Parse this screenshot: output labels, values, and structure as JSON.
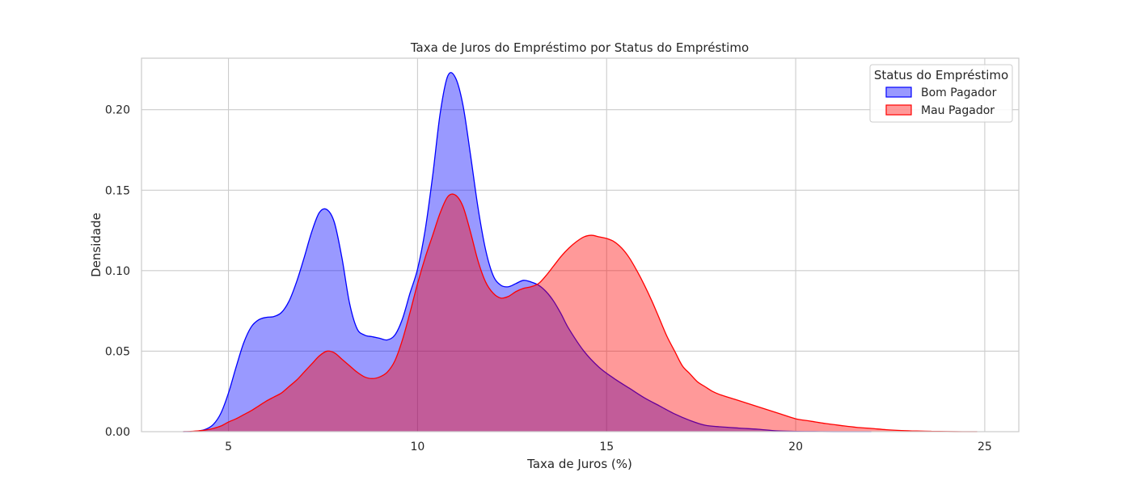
{
  "chart_data": {
    "type": "area",
    "title": "Taxa de Juros do Empréstimo por Status do Empréstimo",
    "xlabel": "Taxa de Juros (%)",
    "ylabel": "Densidade",
    "xlim": [
      2.7,
      25.9
    ],
    "ylim": [
      0.0,
      0.232
    ],
    "x_ticks": [
      5,
      10,
      15,
      20,
      25
    ],
    "x_tick_labels": [
      "5",
      "10",
      "15",
      "20",
      "25"
    ],
    "y_ticks": [
      0.0,
      0.05,
      0.1,
      0.15,
      0.2
    ],
    "y_tick_labels": [
      "0.00",
      "0.05",
      "0.10",
      "0.15",
      "0.20"
    ],
    "grid": true,
    "legend": {
      "title": "Status do Empréstimo",
      "placement": "top-right"
    },
    "series": [
      {
        "name": "Bom Pagador",
        "color": "#0000ff",
        "fill": "#0000ff",
        "fill_opacity": 0.4,
        "x": [
          3.8,
          4.0,
          4.2,
          4.4,
          4.6,
          4.8,
          5.0,
          5.2,
          5.4,
          5.6,
          5.8,
          6.0,
          6.2,
          6.4,
          6.6,
          6.8,
          7.0,
          7.2,
          7.4,
          7.6,
          7.8,
          8.0,
          8.2,
          8.4,
          8.6,
          8.8,
          9.0,
          9.2,
          9.4,
          9.6,
          9.8,
          10.0,
          10.2,
          10.4,
          10.6,
          10.8,
          11.0,
          11.2,
          11.4,
          11.6,
          11.8,
          12.0,
          12.2,
          12.4,
          12.6,
          12.8,
          13.0,
          13.2,
          13.4,
          13.6,
          13.8,
          14.0,
          14.4,
          14.8,
          15.2,
          15.6,
          16.0,
          16.4,
          16.8,
          17.2,
          17.6,
          18.0,
          18.5,
          19.0,
          19.5,
          20.0,
          20.5,
          21.0,
          22.0
        ],
        "y": [
          0.0,
          0.0,
          0.0004,
          0.0015,
          0.0045,
          0.0115,
          0.024,
          0.04,
          0.055,
          0.065,
          0.0695,
          0.071,
          0.0715,
          0.074,
          0.081,
          0.093,
          0.108,
          0.124,
          0.136,
          0.138,
          0.13,
          0.108,
          0.08,
          0.064,
          0.06,
          0.059,
          0.058,
          0.057,
          0.06,
          0.07,
          0.086,
          0.101,
          0.125,
          0.159,
          0.198,
          0.221,
          0.22,
          0.203,
          0.172,
          0.139,
          0.113,
          0.097,
          0.091,
          0.09,
          0.092,
          0.094,
          0.093,
          0.091,
          0.087,
          0.081,
          0.073,
          0.064,
          0.05,
          0.04,
          0.033,
          0.027,
          0.021,
          0.016,
          0.011,
          0.007,
          0.004,
          0.003,
          0.0022,
          0.0015,
          0.0005,
          0.0002,
          0.0001,
          0.0,
          0.0
        ]
      },
      {
        "name": "Mau Pagador",
        "color": "#ff0000",
        "fill": "#ff0000",
        "fill_opacity": 0.4,
        "x": [
          3.8,
          4.0,
          4.2,
          4.4,
          4.6,
          4.8,
          5.0,
          5.2,
          5.4,
          5.6,
          5.8,
          6.0,
          6.2,
          6.4,
          6.6,
          6.8,
          7.0,
          7.2,
          7.4,
          7.6,
          7.8,
          8.0,
          8.2,
          8.4,
          8.6,
          8.8,
          9.0,
          9.2,
          9.4,
          9.6,
          9.8,
          10.0,
          10.2,
          10.4,
          10.6,
          10.8,
          11.0,
          11.2,
          11.4,
          11.6,
          11.8,
          12.0,
          12.2,
          12.4,
          12.6,
          12.8,
          13.0,
          13.2,
          13.4,
          13.6,
          13.8,
          14.0,
          14.2,
          14.4,
          14.6,
          14.8,
          15.0,
          15.2,
          15.4,
          15.6,
          15.8,
          16.0,
          16.2,
          16.4,
          16.6,
          16.8,
          17.0,
          17.2,
          17.4,
          17.6,
          17.8,
          18.0,
          18.4,
          18.8,
          19.2,
          19.6,
          20.0,
          20.4,
          20.8,
          21.2,
          21.6,
          22.0,
          22.4,
          22.8,
          23.2,
          23.6,
          24.0,
          24.4,
          24.8
        ],
        "y": [
          0.0,
          0.0002,
          0.0005,
          0.001,
          0.002,
          0.0035,
          0.006,
          0.008,
          0.0105,
          0.013,
          0.016,
          0.019,
          0.0215,
          0.024,
          0.028,
          0.032,
          0.037,
          0.042,
          0.047,
          0.05,
          0.049,
          0.045,
          0.041,
          0.037,
          0.034,
          0.033,
          0.034,
          0.037,
          0.044,
          0.057,
          0.074,
          0.092,
          0.108,
          0.122,
          0.136,
          0.146,
          0.147,
          0.14,
          0.124,
          0.106,
          0.093,
          0.086,
          0.083,
          0.084,
          0.087,
          0.089,
          0.09,
          0.092,
          0.097,
          0.103,
          0.109,
          0.114,
          0.118,
          0.121,
          0.122,
          0.121,
          0.12,
          0.118,
          0.114,
          0.108,
          0.1,
          0.091,
          0.081,
          0.07,
          0.059,
          0.05,
          0.041,
          0.036,
          0.031,
          0.028,
          0.025,
          0.023,
          0.02,
          0.017,
          0.014,
          0.011,
          0.008,
          0.0065,
          0.005,
          0.0038,
          0.0027,
          0.002,
          0.0012,
          0.0007,
          0.0004,
          0.0002,
          0.0001,
          0.0,
          0.0
        ]
      }
    ]
  }
}
